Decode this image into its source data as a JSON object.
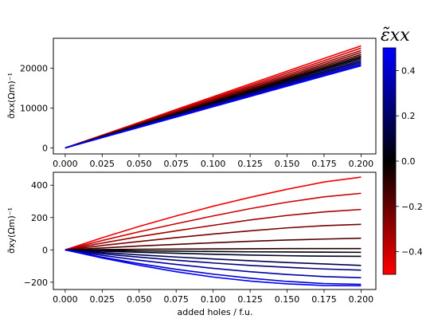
{
  "chart_data": [
    {
      "type": "line",
      "panel": "top",
      "title": "",
      "xlabel": "",
      "ylabel": "σ̃xx(Ωm)⁻¹",
      "xlim": [
        -0.008,
        0.21
      ],
      "ylim": [
        -1500,
        27500
      ],
      "xticks": [
        "0.000",
        "0.025",
        "0.050",
        "0.075",
        "0.100",
        "0.125",
        "0.150",
        "0.175",
        "0.200"
      ],
      "yticks": [
        "0",
        "10000",
        "20000"
      ],
      "x": [
        0.0,
        0.025,
        0.05,
        0.075,
        0.1,
        0.125,
        0.15,
        0.175,
        0.2
      ],
      "series": [
        {
          "strain": -0.47,
          "values": [
            0,
            3200,
            6400,
            9650,
            12850,
            16050,
            19250,
            22450,
            25600
          ]
        },
        {
          "strain": -0.4,
          "values": [
            0,
            3130,
            6250,
            9400,
            12550,
            15650,
            18800,
            21900,
            25050
          ]
        },
        {
          "strain": -0.32,
          "values": [
            0,
            3060,
            6100,
            9180,
            12250,
            15300,
            18350,
            21400,
            24450
          ]
        },
        {
          "strain": -0.24,
          "values": [
            0,
            3000,
            5980,
            8980,
            11980,
            14980,
            17950,
            20950,
            23950
          ]
        },
        {
          "strain": -0.16,
          "values": [
            0,
            2940,
            5870,
            8800,
            11750,
            14680,
            17600,
            20550,
            23450
          ]
        },
        {
          "strain": -0.08,
          "values": [
            0,
            2890,
            5770,
            8650,
            11550,
            14420,
            17300,
            20180,
            23050
          ]
        },
        {
          "strain": 0.0,
          "values": [
            0,
            2840,
            5680,
            8520,
            11350,
            14200,
            17050,
            19880,
            22700
          ]
        },
        {
          "strain": 0.08,
          "values": [
            0,
            2790,
            5580,
            8380,
            11170,
            13960,
            16750,
            19550,
            22350
          ]
        },
        {
          "strain": 0.16,
          "values": [
            0,
            2740,
            5490,
            8230,
            10980,
            13720,
            16460,
            19200,
            21950
          ]
        },
        {
          "strain": 0.24,
          "values": [
            0,
            2700,
            5400,
            8100,
            10800,
            13500,
            16200,
            18900,
            21600
          ]
        },
        {
          "strain": 0.32,
          "values": [
            0,
            2660,
            5320,
            7980,
            10650,
            13300,
            15950,
            18600,
            21250
          ]
        },
        {
          "strain": 0.4,
          "values": [
            0,
            2620,
            5240,
            7860,
            10480,
            13100,
            15700,
            18300,
            20900
          ]
        },
        {
          "strain": 0.48,
          "values": [
            0,
            2580,
            5160,
            7740,
            10330,
            12900,
            15480,
            18050,
            20600
          ]
        }
      ]
    },
    {
      "type": "line",
      "panel": "bottom",
      "title": "",
      "xlabel": "added holes / f.u.",
      "ylabel": "σ̃xy(Ωm)⁻¹",
      "xlim": [
        -0.008,
        0.21
      ],
      "ylim": [
        -245,
        480
      ],
      "xticks": [
        "0.000",
        "0.025",
        "0.050",
        "0.075",
        "0.100",
        "0.125",
        "0.150",
        "0.175",
        "0.200"
      ],
      "yticks": [
        "−200",
        "0",
        "200",
        "400"
      ],
      "x": [
        0.0,
        0.025,
        0.05,
        0.075,
        0.1,
        0.125,
        0.15,
        0.175,
        0.2
      ],
      "series": [
        {
          "strain": -0.47,
          "values": [
            0,
            75,
            145,
            210,
            270,
            325,
            375,
            420,
            450
          ]
        },
        {
          "strain": -0.4,
          "values": [
            0,
            58,
            112,
            162,
            210,
            255,
            295,
            328,
            350
          ]
        },
        {
          "strain": -0.32,
          "values": [
            0,
            42,
            82,
            118,
            152,
            185,
            213,
            235,
            250
          ]
        },
        {
          "strain": -0.24,
          "values": [
            0,
            27,
            52,
            76,
            98,
            118,
            136,
            150,
            158
          ]
        },
        {
          "strain": -0.16,
          "values": [
            0,
            12,
            24,
            34,
            44,
            53,
            61,
            67,
            72
          ]
        },
        {
          "strain": -0.08,
          "values": [
            0,
            2,
            4,
            5,
            6,
            7,
            8,
            8,
            8
          ]
        },
        {
          "strain": 0.0,
          "values": [
            0,
            -3,
            -6,
            -8,
            -10,
            -12,
            -13,
            -14,
            -15
          ]
        },
        {
          "strain": 0.08,
          "values": [
            0,
            -8,
            -15,
            -21,
            -27,
            -32,
            -36,
            -39,
            -40
          ]
        },
        {
          "strain": 0.16,
          "values": [
            0,
            -16,
            -31,
            -44,
            -56,
            -67,
            -78,
            -87,
            -96
          ]
        },
        {
          "strain": 0.24,
          "values": [
            0,
            -24,
            -45,
            -64,
            -81,
            -96,
            -108,
            -118,
            -125
          ]
        },
        {
          "strain": 0.32,
          "values": [
            0,
            -34,
            -64,
            -90,
            -114,
            -135,
            -152,
            -165,
            -172
          ]
        },
        {
          "strain": 0.4,
          "values": [
            0,
            -45,
            -85,
            -120,
            -150,
            -175,
            -195,
            -208,
            -213
          ]
        },
        {
          "strain": 0.48,
          "values": [
            0,
            -50,
            -95,
            -135,
            -168,
            -193,
            -210,
            -220,
            -222
          ]
        }
      ]
    }
  ],
  "colorbar": {
    "title": "ε̃xx",
    "range": [
      -0.5,
      0.5
    ],
    "ticks": [
      "0.4",
      "0.2",
      "0.0",
      "−0.2",
      "−0.4"
    ],
    "tick_values": [
      0.4,
      0.2,
      0.0,
      -0.2,
      -0.4
    ],
    "colors": {
      "low": "#ff0000",
      "mid": "#000000",
      "high": "#0000ff"
    }
  }
}
